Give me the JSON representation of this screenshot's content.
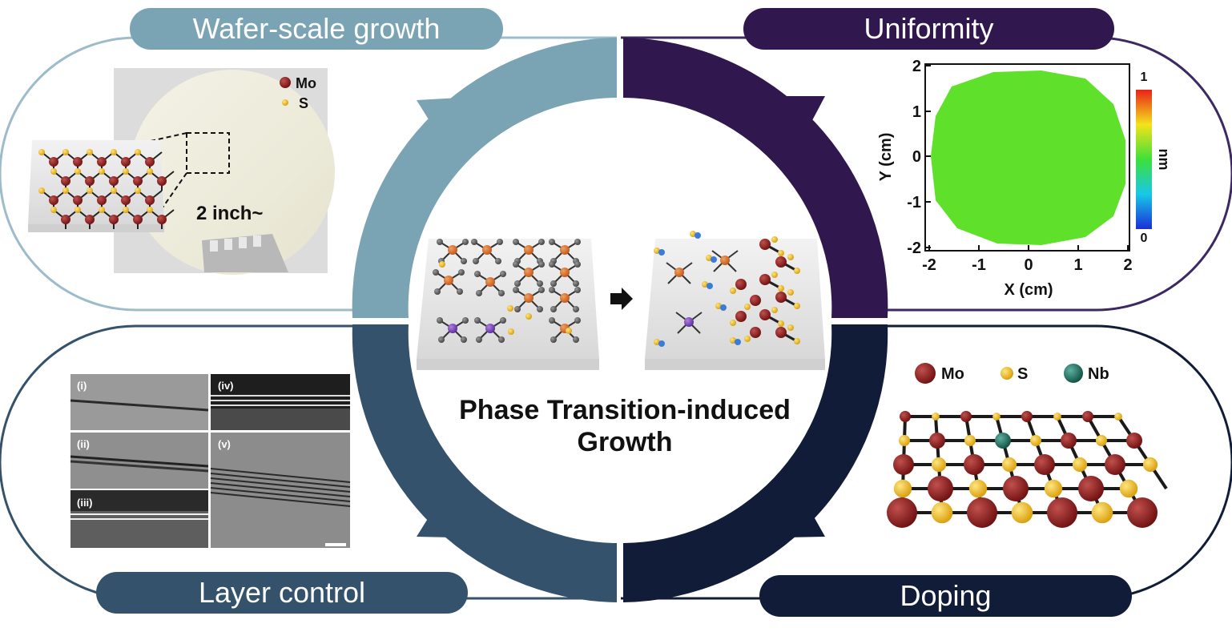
{
  "panels": {
    "top_left": {
      "title": "Wafer-scale growth",
      "color": "#7aa3b4"
    },
    "top_right": {
      "title": "Uniformity",
      "color": "#30184f"
    },
    "bottom_left": {
      "title": "Layer control",
      "color": "#34526b"
    },
    "bottom_right": {
      "title": "Doping",
      "color": "#101c38"
    }
  },
  "center": {
    "title_line1": "Phase Transition-induced",
    "title_line2": "Growth"
  },
  "wafer": {
    "legend": [
      {
        "label": "Mo",
        "color": "#8b1a1a"
      },
      {
        "label": "S",
        "color": "#f0b81c"
      }
    ],
    "size_label": "2 inch~"
  },
  "uniformity_map": {
    "xlabel": "X (cm)",
    "ylabel": "Y (cm)",
    "x_ticks": [
      "-2",
      "-1",
      "0",
      "1",
      "2"
    ],
    "y_ticks": [
      "2",
      "1",
      "0",
      "-1",
      "-2"
    ],
    "colorbar_unit": "nm",
    "colorbar_max": "1",
    "colorbar_min": "0",
    "fill_color": "#5fe02a"
  },
  "layers": {
    "labels": [
      "(i)",
      "(ii)",
      "(iii)",
      "(iv)",
      "(v)"
    ]
  },
  "doping": {
    "legend": [
      {
        "label": "Mo",
        "color": "#8b1a1a"
      },
      {
        "label": "S",
        "color": "#f0b81c"
      },
      {
        "label": "Nb",
        "color": "#1f6f63"
      }
    ]
  }
}
